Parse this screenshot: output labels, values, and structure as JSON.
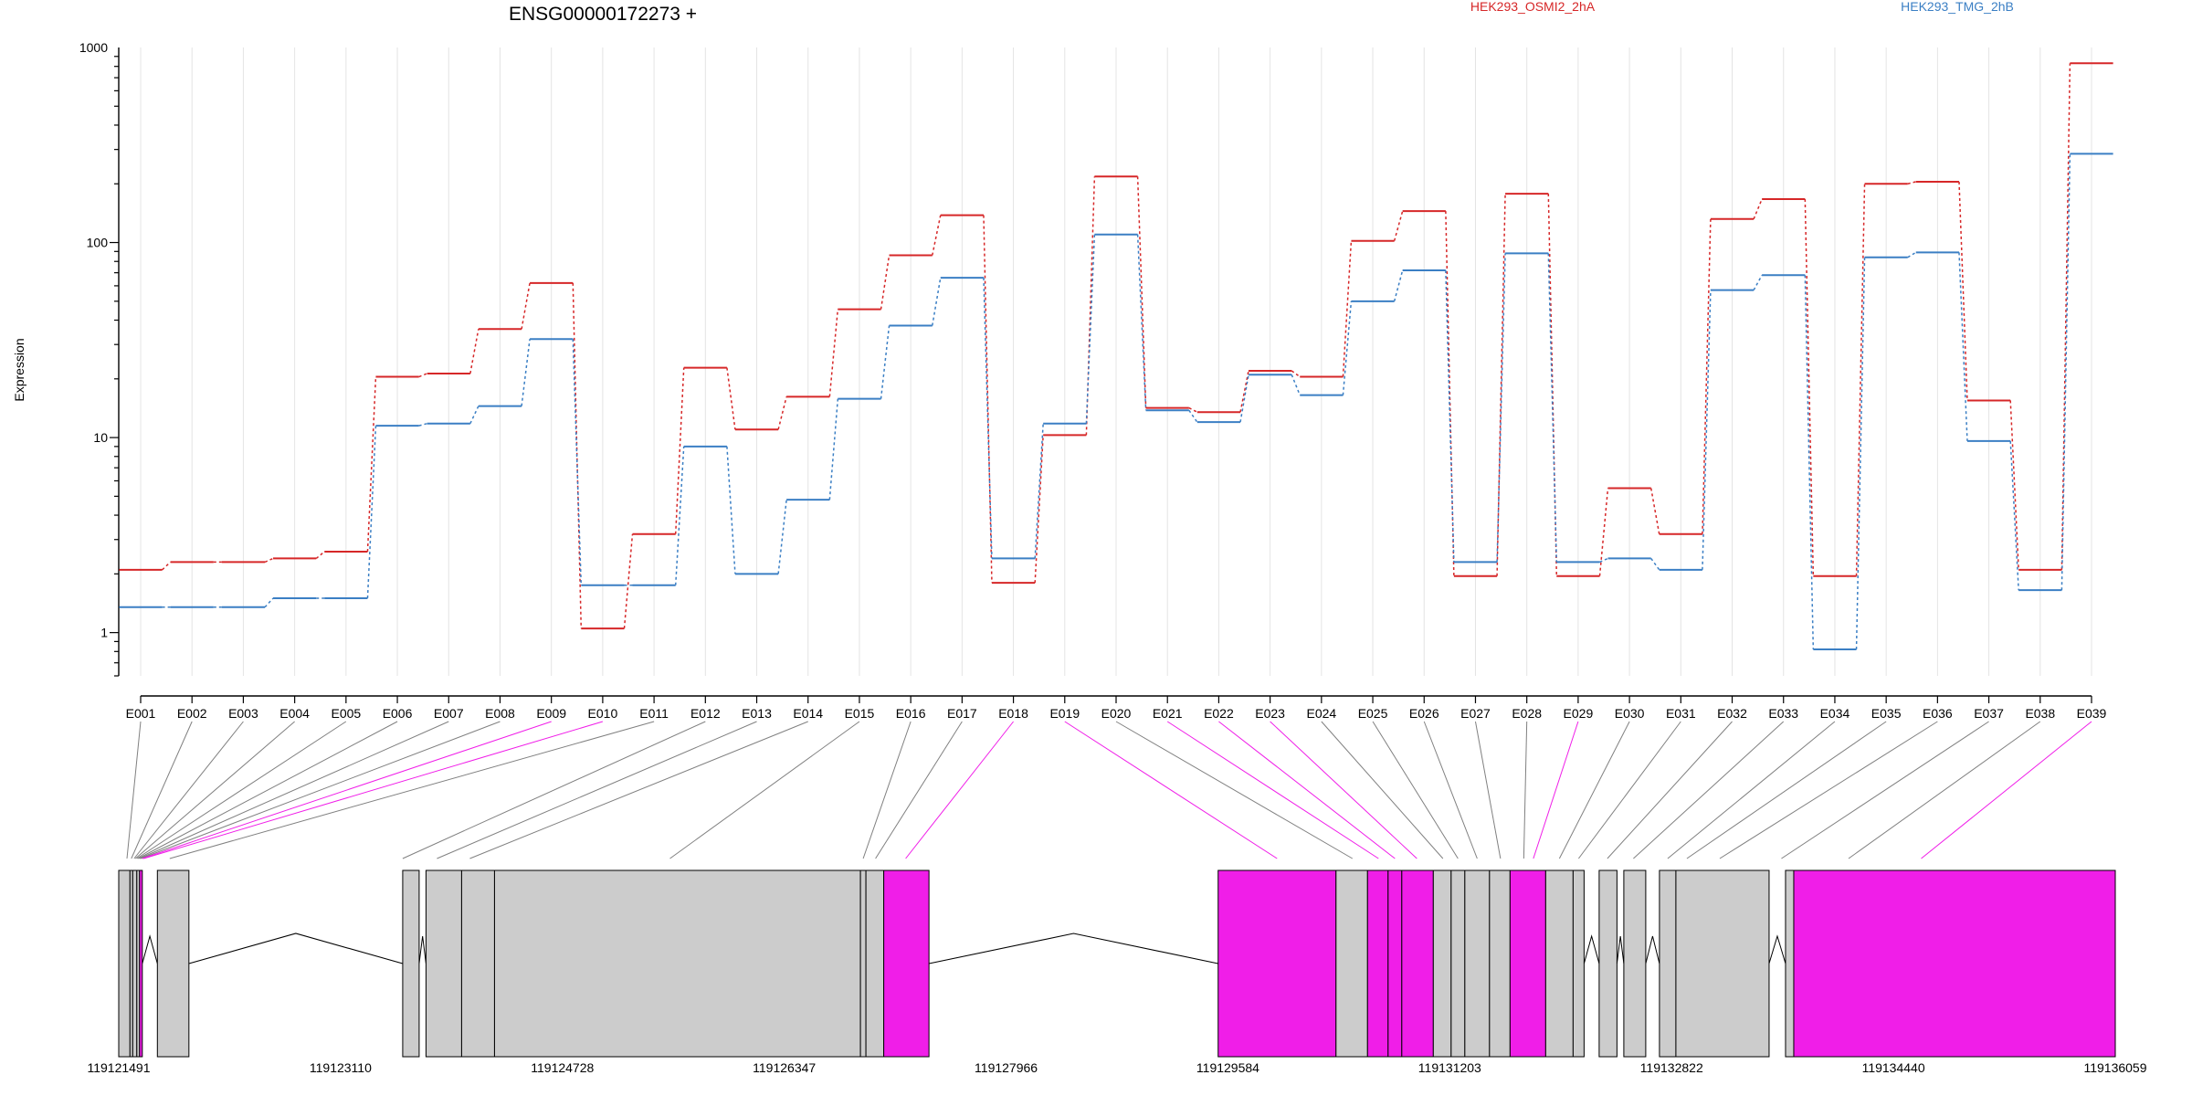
{
  "chart_data": {
    "type": "line",
    "title": "ENSG00000172273 +",
    "ylabel": "Expression",
    "yscale": "log",
    "ylim": [
      0.6,
      1000
    ],
    "yticks": [
      1,
      10,
      100,
      1000
    ],
    "grid": "vertical",
    "legend_placement": "top",
    "categories": [
      "E001",
      "E002",
      "E003",
      "E004",
      "E005",
      "E006",
      "E007",
      "E008",
      "E009",
      "E010",
      "E011",
      "E012",
      "E013",
      "E014",
      "E015",
      "E016",
      "E017",
      "E018",
      "E019",
      "E020",
      "E021",
      "E022",
      "E023",
      "E024",
      "E025",
      "E026",
      "E027",
      "E028",
      "E029",
      "E030",
      "E031",
      "E032",
      "E033",
      "E034",
      "E035",
      "E036",
      "E037",
      "E038",
      "E039"
    ],
    "series": [
      {
        "name": "HEK293_OSMI2_2hA",
        "color": "#d62728",
        "values": [
          2.1,
          2.3,
          2.3,
          2.4,
          2.6,
          20.5,
          21.3,
          36,
          62,
          1.05,
          3.2,
          22.8,
          11,
          16.2,
          45.5,
          86,
          138,
          1.8,
          10.3,
          218,
          14.2,
          13.5,
          22,
          20.5,
          102,
          145,
          1.95,
          178,
          1.95,
          5.5,
          3.2,
          132,
          167,
          1.95,
          200,
          205,
          15.5,
          2.1,
          830
        ]
      },
      {
        "name": "HEK293_TMG_2hB",
        "color": "#3b7fc4",
        "values": [
          1.35,
          1.35,
          1.35,
          1.5,
          1.5,
          11.5,
          11.8,
          14.5,
          32,
          1.75,
          1.75,
          9,
          2,
          4.8,
          15.8,
          37.5,
          66,
          2.4,
          11.8,
          110,
          13.8,
          12,
          21,
          16.5,
          50,
          72,
          2.3,
          88,
          2.3,
          2.4,
          2.1,
          57,
          68,
          0.82,
          84,
          89,
          9.6,
          1.65,
          285
        ]
      }
    ],
    "gene_model": {
      "coordinate_ticks": [
        "119121491",
        "119123110",
        "119124728",
        "119126347",
        "119127966",
        "119129584",
        "119131203",
        "119132822",
        "119134440",
        "119136059"
      ],
      "genome_start": 119121491,
      "genome_end": 119136059,
      "colors": {
        "exon": "#cccccc",
        "highlight": "#f01ee8",
        "line": "#000000"
      },
      "exons": [
        {
          "start": 119121491,
          "end": 119121573,
          "highlight": false
        },
        {
          "start": 119121573,
          "end": 119121593,
          "highlight": false
        },
        {
          "start": 119121593,
          "end": 119121623,
          "highlight": false
        },
        {
          "start": 119121623,
          "end": 119121643,
          "highlight": false
        },
        {
          "start": 119121643,
          "end": 119121663,
          "highlight": true
        },
        {
          "start": 119121773,
          "end": 119122003,
          "highlight": false
        },
        {
          "start": 119123563,
          "end": 119123683,
          "highlight": false
        },
        {
          "start": 119123733,
          "end": 119123993,
          "highlight": false
        },
        {
          "start": 119123993,
          "end": 119124233,
          "highlight": false
        },
        {
          "start": 119124233,
          "end": 119126903,
          "highlight": false
        },
        {
          "start": 119126903,
          "end": 119126943,
          "highlight": false
        },
        {
          "start": 119126943,
          "end": 119127073,
          "highlight": false
        },
        {
          "start": 119127073,
          "end": 119127403,
          "highlight": true
        },
        {
          "start": 119129513,
          "end": 119130373,
          "highlight": true
        },
        {
          "start": 119130373,
          "end": 119130603,
          "highlight": false
        },
        {
          "start": 119130603,
          "end": 119130753,
          "highlight": true
        },
        {
          "start": 119130753,
          "end": 119130853,
          "highlight": true
        },
        {
          "start": 119130853,
          "end": 119131083,
          "highlight": true
        },
        {
          "start": 119131083,
          "end": 119131213,
          "highlight": false
        },
        {
          "start": 119131213,
          "end": 119131313,
          "highlight": false
        },
        {
          "start": 119131313,
          "end": 119131493,
          "highlight": false
        },
        {
          "start": 119131493,
          "end": 119131643,
          "highlight": false
        },
        {
          "start": 119131643,
          "end": 119131903,
          "highlight": true
        },
        {
          "start": 119131903,
          "end": 119132103,
          "highlight": false
        },
        {
          "start": 119132103,
          "end": 119132183,
          "highlight": false
        },
        {
          "start": 119132293,
          "end": 119132423,
          "highlight": false
        },
        {
          "start": 119132473,
          "end": 119132633,
          "highlight": false
        },
        {
          "start": 119132733,
          "end": 119132853,
          "highlight": false
        },
        {
          "start": 119132853,
          "end": 119133533,
          "highlight": false
        },
        {
          "start": 119133653,
          "end": 119133713,
          "highlight": false
        },
        {
          "start": 119133713,
          "end": 119136059,
          "highlight": true
        }
      ],
      "introns": [
        {
          "start": 119122003,
          "end": 119123563
        },
        {
          "start": 119127403,
          "end": 119129513
        }
      ],
      "bin_links": [
        {
          "bin": "E001",
          "pos": 119121551,
          "highlight": false
        },
        {
          "bin": "E002",
          "pos": 119121583,
          "highlight": false
        },
        {
          "bin": "E003",
          "pos": 119121603,
          "highlight": false
        },
        {
          "bin": "E004",
          "pos": 119121613,
          "highlight": false
        },
        {
          "bin": "E005",
          "pos": 119121623,
          "highlight": false
        },
        {
          "bin": "E006",
          "pos": 119121633,
          "highlight": false
        },
        {
          "bin": "E007",
          "pos": 119121643,
          "highlight": false
        },
        {
          "bin": "E008",
          "pos": 119121653,
          "highlight": false
        },
        {
          "bin": "E009",
          "pos": 119121663,
          "highlight": true
        },
        {
          "bin": "E010",
          "pos": 119121673,
          "highlight": true
        },
        {
          "bin": "E011",
          "pos": 119121863,
          "highlight": false
        },
        {
          "bin": "E012",
          "pos": 119123563,
          "highlight": false
        },
        {
          "bin": "E013",
          "pos": 119123813,
          "highlight": false
        },
        {
          "bin": "E014",
          "pos": 119124053,
          "highlight": false
        },
        {
          "bin": "E015",
          "pos": 119125513,
          "highlight": false
        },
        {
          "bin": "E016",
          "pos": 119126923,
          "highlight": false
        },
        {
          "bin": "E017",
          "pos": 119127013,
          "highlight": false
        },
        {
          "bin": "E018",
          "pos": 119127233,
          "highlight": true
        },
        {
          "bin": "E019",
          "pos": 119129943,
          "highlight": true
        },
        {
          "bin": "E020",
          "pos": 119130493,
          "highlight": false
        },
        {
          "bin": "E021",
          "pos": 119130683,
          "highlight": true
        },
        {
          "bin": "E022",
          "pos": 119130803,
          "highlight": true
        },
        {
          "bin": "E023",
          "pos": 119130963,
          "highlight": true
        },
        {
          "bin": "E024",
          "pos": 119131153,
          "highlight": false
        },
        {
          "bin": "E025",
          "pos": 119131263,
          "highlight": false
        },
        {
          "bin": "E026",
          "pos": 119131403,
          "highlight": false
        },
        {
          "bin": "E027",
          "pos": 119131573,
          "highlight": false
        },
        {
          "bin": "E028",
          "pos": 119131743,
          "highlight": false
        },
        {
          "bin": "E029",
          "pos": 119131813,
          "highlight": true
        },
        {
          "bin": "E030",
          "pos": 119132003,
          "highlight": false
        },
        {
          "bin": "E031",
          "pos": 119132143,
          "highlight": false
        },
        {
          "bin": "E032",
          "pos": 119132353,
          "highlight": false
        },
        {
          "bin": "E033",
          "pos": 119132543,
          "highlight": false
        },
        {
          "bin": "E034",
          "pos": 119132793,
          "highlight": false
        },
        {
          "bin": "E035",
          "pos": 119132933,
          "highlight": false
        },
        {
          "bin": "E036",
          "pos": 119133173,
          "highlight": false
        },
        {
          "bin": "E037",
          "pos": 119133623,
          "highlight": false
        },
        {
          "bin": "E038",
          "pos": 119134113,
          "highlight": false
        },
        {
          "bin": "E039",
          "pos": 119134643,
          "highlight": true
        }
      ]
    }
  }
}
